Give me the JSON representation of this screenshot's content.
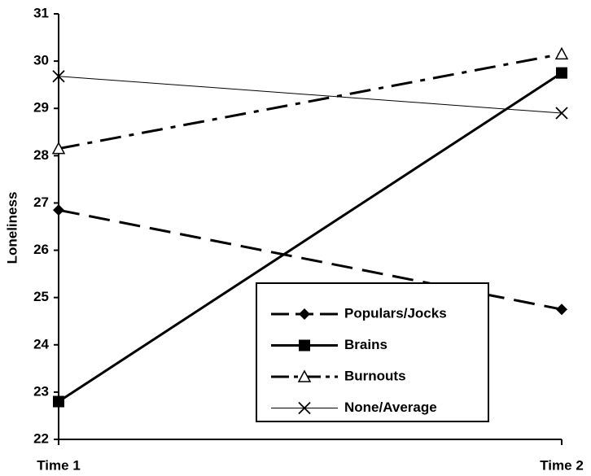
{
  "chart_data": {
    "type": "line",
    "y_label": "Loneliness",
    "categories": [
      "Time 1",
      "Time 2"
    ],
    "series": [
      {
        "name": "Populars/Jocks",
        "color": "#000000",
        "marker": "diamond",
        "dash": "26 12",
        "line_width": 3,
        "values": [
          26.85,
          24.75
        ]
      },
      {
        "name": "Brains",
        "color": "#000000",
        "marker": "square",
        "dash": "none",
        "line_width": 3,
        "values": [
          22.8,
          29.75
        ]
      },
      {
        "name": "Burnouts",
        "color": "#000000",
        "marker": "triangle",
        "dash": "26 10 6 10",
        "line_width": 3,
        "values": [
          28.15,
          30.15
        ]
      },
      {
        "name": "None/Average",
        "color": "#000000",
        "marker": "x",
        "dash": "none",
        "line_width": 1,
        "values": [
          29.68,
          28.9
        ]
      }
    ],
    "ylim": [
      22,
      31
    ],
    "yticks": [
      22,
      23,
      24,
      25,
      26,
      27,
      28,
      29,
      30,
      31
    ],
    "grid": false,
    "legend": "lower right"
  }
}
